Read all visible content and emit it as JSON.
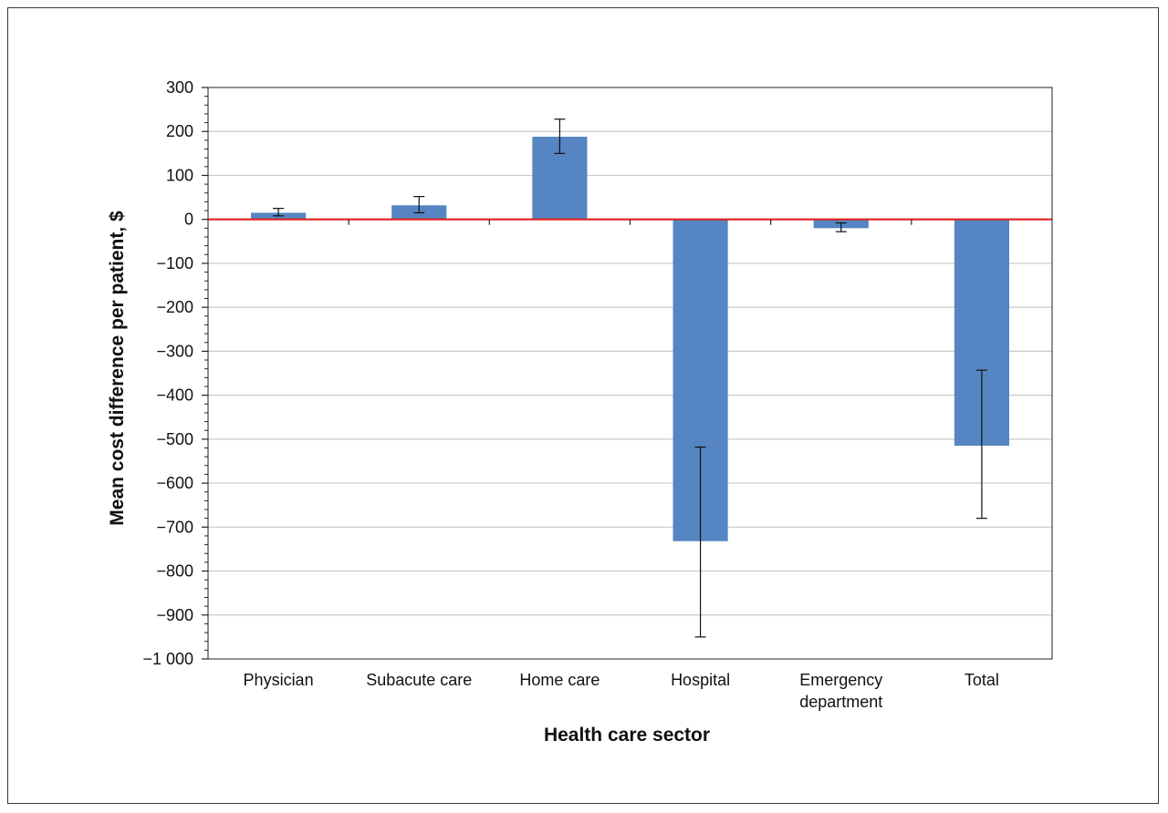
{
  "chart_data": {
    "type": "bar",
    "title": "",
    "xlabel": "Health care sector",
    "ylabel": "Mean cost difference per patient, $",
    "ylim": [
      -1000,
      300
    ],
    "yticks": [
      300,
      200,
      100,
      0,
      -100,
      -200,
      -300,
      -400,
      -500,
      -600,
      -700,
      -800,
      -900,
      -1000
    ],
    "ytick_labels": [
      "300",
      "200",
      "100",
      "0",
      "−100",
      "−200",
      "−300",
      "−400",
      "−500",
      "−600",
      "−700",
      "−800",
      "−900",
      "−1 000"
    ],
    "categories": [
      "Physician",
      "Subacute care",
      "Home care",
      "Hospital",
      "Emergency department",
      "Total"
    ],
    "category_label_lines": [
      [
        "Physician"
      ],
      [
        "Subacute care"
      ],
      [
        "Home care"
      ],
      [
        "Hospital"
      ],
      [
        "Emergency",
        "department"
      ],
      [
        "Total"
      ]
    ],
    "values": [
      15,
      32,
      188,
      -732,
      -20,
      -515
    ],
    "error_low": [
      8,
      15,
      150,
      -950,
      -28,
      -680
    ],
    "error_high": [
      25,
      52,
      228,
      -518,
      -8,
      -343
    ],
    "grid": true,
    "reference_line": {
      "y": 0,
      "color": "#e02020"
    },
    "colors": {
      "bar": "#5585c2",
      "gridline": "#c8c8c8",
      "axis": "#222222",
      "errorbar": "#111111"
    },
    "legend": "none"
  }
}
